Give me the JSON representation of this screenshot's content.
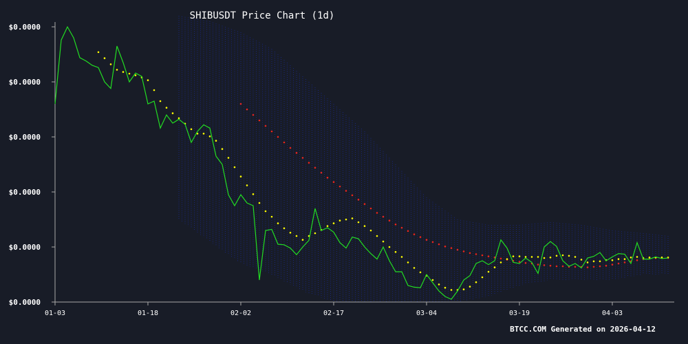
{
  "chart_data": {
    "type": "line",
    "title": "SHIBUSDT Price Chart (1d)",
    "footer": "BTCC.COM Generated on 2026-04-12",
    "xlabel": "",
    "ylabel": "",
    "grid": false,
    "x_ticks": [
      "01-03",
      "01-18",
      "02-02",
      "02-17",
      "03-04",
      "03-19",
      "04-03"
    ],
    "y_ticks": [
      "$0.0000",
      "$0.0000",
      "$0.0000",
      "$0.0000",
      "$0.0000",
      "$0.0000"
    ],
    "x_start": "2026-01-03",
    "xlim": [
      0,
      100
    ],
    "ylim": [
      5.5e-06,
      1.05e-05
    ],
    "colors": {
      "background": "#181c27",
      "price": "#22dd22",
      "ma_short": "#ffff00",
      "ma_long": "#e8251e",
      "band": "#1a2a9a",
      "axis": "#aaaaaa",
      "text": "#ffffff"
    },
    "series": [
      {
        "kind": "price",
        "x": [
          0,
          1,
          2,
          3,
          4,
          5,
          6,
          7,
          8,
          9,
          10,
          11,
          12,
          13,
          14,
          15,
          16,
          17,
          18,
          19,
          20,
          21,
          22,
          23,
          24,
          25,
          26,
          27,
          28,
          29,
          30,
          31,
          32,
          33,
          34,
          35,
          36,
          37,
          38,
          39,
          40,
          41,
          42,
          43,
          44,
          45,
          46,
          47,
          48,
          49,
          50,
          51,
          52,
          53,
          54,
          55,
          56,
          57,
          58,
          59,
          60,
          61,
          62,
          63,
          64,
          65,
          66,
          67,
          68,
          69,
          70,
          71,
          72,
          73,
          74,
          75,
          76,
          77,
          78,
          79,
          80,
          81,
          82,
          83,
          84,
          85,
          86,
          87,
          88,
          89,
          90,
          91,
          92,
          93,
          94,
          95,
          96,
          97,
          98,
          99
        ],
        "y": [
          9.1e-06,
          1.026e-05,
          1.05e-05,
          1.03e-05,
          9.94e-06,
          9.88e-06,
          9.8e-06,
          9.76e-06,
          9.5e-06,
          9.38e-06,
          1.015e-05,
          9.85e-06,
          9.5e-06,
          9.66e-06,
          9.6e-06,
          9.1e-06,
          9.15e-06,
          8.66e-06,
          8.9e-06,
          8.75e-06,
          8.82e-06,
          8.73e-06,
          8.4e-06,
          8.6e-06,
          8.72e-06,
          8.66e-06,
          8.15e-06,
          8e-06,
          7.45e-06,
          7.25e-06,
          7.45e-06,
          7.3e-06,
          7.25e-06,
          5.9e-06,
          6.8e-06,
          6.82e-06,
          6.55e-06,
          6.54e-06,
          6.48e-06,
          6.36e-06,
          6.5e-06,
          6.62e-06,
          7.2e-06,
          6.8e-06,
          6.85e-06,
          6.77e-06,
          6.58e-06,
          6.48e-06,
          6.68e-06,
          6.65e-06,
          6.5e-06,
          6.38e-06,
          6.28e-06,
          6.5e-06,
          6.25e-06,
          6.05e-06,
          6.05e-06,
          5.8e-06,
          5.77e-06,
          5.76e-06,
          6e-06,
          5.85e-06,
          5.7e-06,
          5.6e-06,
          5.55e-06,
          5.7e-06,
          5.9e-06,
          5.98e-06,
          6.2e-06,
          6.25e-06,
          6.18e-06,
          6.25e-06,
          6.63e-06,
          6.48e-06,
          6.22e-06,
          6.2e-06,
          6.3e-06,
          6.22e-06,
          6.02e-06,
          6.5e-06,
          6.6e-06,
          6.51e-06,
          6.25e-06,
          6.15e-06,
          6.2e-06,
          6.12e-06,
          6.3e-06,
          6.33e-06,
          6.4e-06,
          6.25e-06,
          6.32e-06,
          6.38e-06,
          6.37e-06,
          6.2e-06,
          6.58e-06,
          6.28e-06,
          6.28e-06,
          6.32e-06,
          6.29e-06,
          6.3e-06
        ]
      },
      {
        "kind": "ma_short",
        "x": [
          7,
          8,
          9,
          10,
          11,
          12,
          13,
          14,
          15,
          16,
          17,
          18,
          19,
          20,
          21,
          22,
          23,
          24,
          25,
          26,
          27,
          28,
          29,
          30,
          31,
          32,
          33,
          34,
          35,
          36,
          37,
          38,
          39,
          40,
          41,
          42,
          43,
          44,
          45,
          46,
          47,
          48,
          49,
          50,
          51,
          52,
          53,
          54,
          55,
          56,
          57,
          58,
          59,
          60,
          61,
          62,
          63,
          64,
          65,
          66,
          67,
          68,
          69,
          70,
          71,
          72,
          73,
          74,
          75,
          76,
          77,
          78,
          79,
          80,
          81,
          82,
          83,
          84,
          85,
          86,
          87,
          88,
          89,
          90,
          91,
          92,
          93,
          94,
          95,
          96,
          97,
          98,
          99
        ],
        "y": [
          1.004e-05,
          9.93e-06,
          9.82e-06,
          9.72e-06,
          9.68e-06,
          9.65e-06,
          9.62e-06,
          9.58e-06,
          9.53e-06,
          9.35e-06,
          9.15e-06,
          9.03e-06,
          8.93e-06,
          8.84e-06,
          8.74e-06,
          8.64e-06,
          8.56e-06,
          8.56e-06,
          8.51e-06,
          8.43e-06,
          8.28e-06,
          8.12e-06,
          7.95e-06,
          7.78e-06,
          7.62e-06,
          7.46e-06,
          7.3e-06,
          7.15e-06,
          7.05e-06,
          6.93e-06,
          6.84e-06,
          6.76e-06,
          6.7e-06,
          6.63e-06,
          6.7e-06,
          6.75e-06,
          6.81e-06,
          6.88e-06,
          6.93e-06,
          6.98e-06,
          7e-06,
          7.02e-06,
          6.95e-06,
          6.88e-06,
          6.8e-06,
          6.7e-06,
          6.6e-06,
          6.5e-06,
          6.41e-06,
          6.32e-06,
          6.22e-06,
          6.12e-06,
          6.04e-06,
          5.98e-06,
          5.9e-06,
          5.82e-06,
          5.76e-06,
          5.72e-06,
          5.72e-06,
          5.73e-06,
          5.78e-06,
          5.86e-06,
          5.95e-06,
          6.05e-06,
          6.13e-06,
          6.22e-06,
          6.28e-06,
          6.33e-06,
          6.33e-06,
          6.32e-06,
          6.32e-06,
          6.32e-06,
          6.3e-06,
          6.31e-06,
          6.34e-06,
          6.35e-06,
          6.34e-06,
          6.32e-06,
          6.27e-06,
          6.22e-06,
          6.24e-06,
          6.24e-06,
          6.26e-06,
          6.26e-06,
          6.28e-06,
          6.28e-06,
          6.31e-06,
          6.32e-06,
          6.3e-06,
          6.31e-06,
          6.31e-06,
          6.31e-06,
          6.31e-06
        ]
      },
      {
        "kind": "ma_long",
        "x": [
          30,
          31,
          32,
          33,
          34,
          35,
          36,
          37,
          38,
          39,
          40,
          41,
          42,
          43,
          44,
          45,
          46,
          47,
          48,
          49,
          50,
          51,
          52,
          53,
          54,
          55,
          56,
          57,
          58,
          59,
          60,
          61,
          62,
          63,
          64,
          65,
          66,
          67,
          68,
          69,
          70,
          71,
          72,
          73,
          74,
          75,
          76,
          77,
          78,
          79,
          80,
          81,
          82,
          83,
          84,
          85,
          86,
          87,
          88,
          89,
          90,
          91,
          92,
          93,
          94,
          95,
          96,
          97,
          98,
          99
        ],
        "y": [
          9.1e-06,
          9e-06,
          8.9e-06,
          8.8e-06,
          8.7e-06,
          8.6e-06,
          8.5e-06,
          8.4e-06,
          8.3e-06,
          8.21e-06,
          8.12e-06,
          8.03e-06,
          7.94e-06,
          7.85e-06,
          7.76e-06,
          7.68e-06,
          7.6e-06,
          7.52e-06,
          7.44e-06,
          7.36e-06,
          7.28e-06,
          7.2e-06,
          7.12e-06,
          7.05e-06,
          6.98e-06,
          6.91e-06,
          6.85e-06,
          6.79e-06,
          6.73e-06,
          6.68e-06,
          6.63e-06,
          6.59e-06,
          6.55e-06,
          6.51e-06,
          6.48e-06,
          6.45e-06,
          6.42e-06,
          6.39e-06,
          6.37e-06,
          6.35e-06,
          6.33e-06,
          6.31e-06,
          6.29e-06,
          6.27e-06,
          6.25e-06,
          6.23e-06,
          6.21e-06,
          6.2e-06,
          6.18e-06,
          6.17e-06,
          6.16e-06,
          6.15e-06,
          6.15e-06,
          6.14e-06,
          6.14e-06,
          6.14e-06,
          6.13e-06,
          6.14e-06,
          6.15e-06,
          6.16e-06,
          6.18e-06,
          6.2e-06,
          6.22e-06,
          6.24e-06,
          6.26e-06,
          6.28e-06,
          6.29e-06,
          6.3e-06,
          6.3e-06,
          6.3e-06
        ]
      },
      {
        "kind": "band",
        "x": [
          20,
          25,
          30,
          35,
          40,
          45,
          50,
          55,
          60,
          65,
          70,
          75,
          80,
          85,
          90,
          95,
          99
        ],
        "upper": [
          1.07e-05,
          1.06e-05,
          1.04e-05,
          1.01e-05,
          9.6e-06,
          9.1e-06,
          8.6e-06,
          8e-06,
          7.4e-06,
          7e-06,
          6.9e-06,
          6.9e-06,
          6.95e-06,
          6.9e-06,
          6.8e-06,
          6.75e-06,
          6.7e-06
        ],
        "lower": [
          7e-06,
          6.6e-06,
          6.2e-06,
          6e-06,
          5.7e-06,
          5.5e-06,
          5.5e-06,
          5.5e-06,
          5.5e-06,
          5.5e-06,
          5.6e-06,
          5.8e-06,
          5.9e-06,
          5.9e-06,
          5.9e-06,
          6e-06,
          6e-06
        ]
      }
    ]
  }
}
